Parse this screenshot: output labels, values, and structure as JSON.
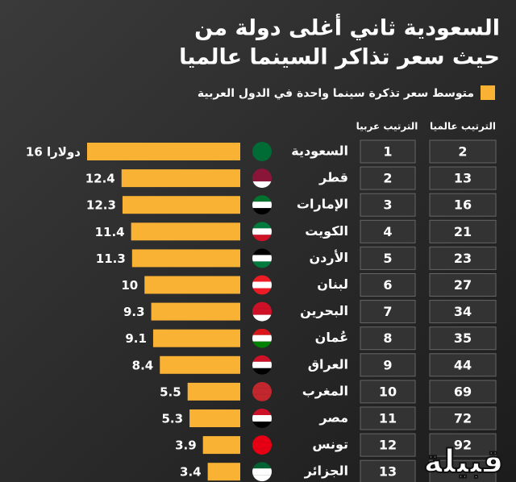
{
  "chart_data": {
    "type": "bar",
    "title": [
      "السعودية ثاني أغلى دولة من",
      "حيث سعر تذاكر السينما عالميا"
    ],
    "rank_headers": [
      "الترتيب عربيا",
      "الترتيب عالميا"
    ],
    "categories": [
      "السعودية",
      "قطر",
      "الإمارات",
      "الكويت",
      "الأردن",
      "لبنان",
      "البحرين",
      "عُمان",
      "العراق",
      "المغرب",
      "مصر",
      "تونس",
      "الجزائر"
    ],
    "series": [
      {
        "name": "متوسط سعر تذكرة سينما واحدة في الدول العربية",
        "color": "#f9b233",
        "values": [
          16,
          12.4,
          12.3,
          11.4,
          11.3,
          10,
          9.3,
          9.1,
          8.4,
          5.5,
          5.3,
          3.9,
          3.4
        ],
        "value_labels": [
          "16 دولارا",
          "12.4",
          "12.3",
          "11.4",
          "11.3",
          "10",
          "9.3",
          "9.1",
          "8.4",
          "5.5",
          "5.3",
          "3.9",
          "3.4"
        ]
      }
    ],
    "arab_rank": [
      1,
      2,
      3,
      4,
      5,
      6,
      7,
      8,
      9,
      10,
      11,
      12,
      13
    ],
    "world_rank": [
      2,
      13,
      16,
      21,
      23,
      27,
      34,
      35,
      44,
      69,
      72,
      92,
      null
    ],
    "watermark": "قبيلة"
  }
}
